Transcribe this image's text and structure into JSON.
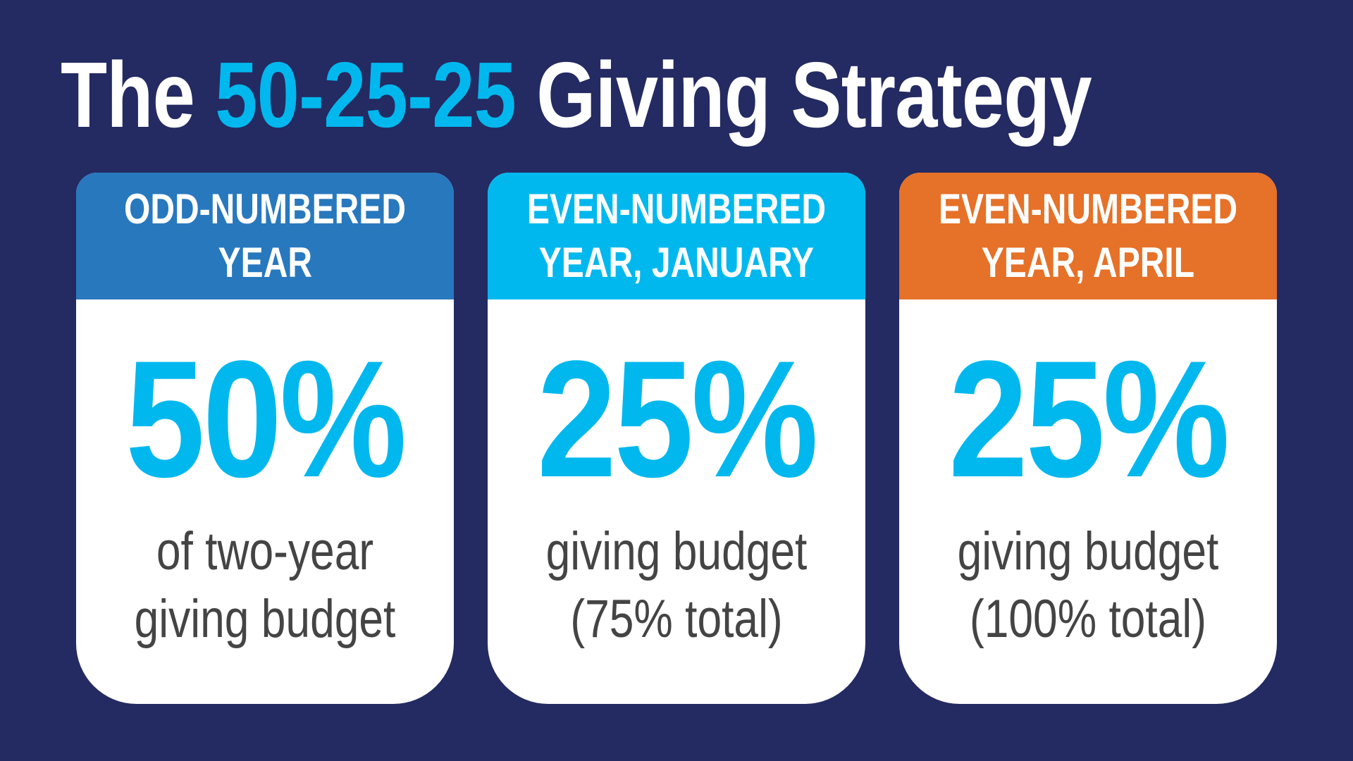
{
  "title": {
    "prefix": "The ",
    "highlight": "50-25-25",
    "suffix": " Giving Strategy"
  },
  "colors": {
    "background": "#242a62",
    "accent": "#00b8ee",
    "card1_header": "#2878be",
    "card2_header": "#00b8ee",
    "card3_header": "#e67128",
    "body_text": "#444444"
  },
  "cards": [
    {
      "header": [
        "ODD-NUMBERED",
        "YEAR"
      ],
      "percent": "50%",
      "description": [
        "of two-year",
        "giving budget"
      ]
    },
    {
      "header": [
        "EVEN-NUMBERED",
        "YEAR, JANUARY"
      ],
      "percent": "25%",
      "description": [
        "giving budget",
        "(75% total)"
      ]
    },
    {
      "header": [
        "EVEN-NUMBERED",
        "YEAR, APRIL"
      ],
      "percent": "25%",
      "description": [
        "giving budget",
        "(100% total)"
      ]
    }
  ]
}
